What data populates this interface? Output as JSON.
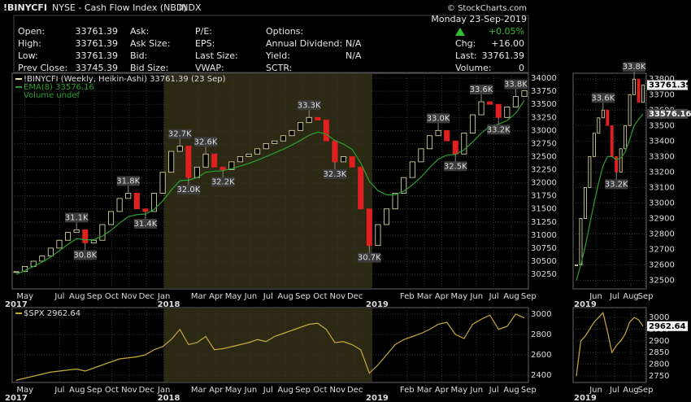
{
  "header": {
    "symbol": "!BINYCFI",
    "exchange": "NYSE - Cash Flow Index (NBD)",
    "kind": "INDX",
    "brand": "© StockCharts.com",
    "date": "Monday  23-Sep-2019",
    "columns": [
      [
        {
          "label": "Open:",
          "value": "33761.39"
        },
        {
          "label": "High:",
          "value": "33761.39"
        },
        {
          "label": "Low:",
          "value": "33761.39"
        },
        {
          "label": "Prev Close:",
          "value": "33745.39"
        }
      ],
      [
        {
          "label": "Ask:"
        },
        {
          "label": "Ask Size:"
        },
        {
          "label": "Bid:"
        },
        {
          "label": "Bid Size:"
        }
      ],
      [
        {
          "label": "P/E:"
        },
        {
          "label": "EPS:"
        },
        {
          "label": "Last Size:"
        },
        {
          "label": "VWAP:"
        }
      ],
      [
        {
          "label": "Options:"
        },
        {
          "label": "Annual Dividend:",
          "value": "N/A"
        },
        {
          "label": "Yield:",
          "value": "N/A"
        },
        {
          "label": "SCTR:"
        }
      ]
    ],
    "change": "+0.05%",
    "quote": [
      {
        "label": "Chg:",
        "value": "+16.00"
      },
      {
        "label": "Last:",
        "value": "33761.39"
      },
      {
        "label": "Volume:",
        "value": "0"
      }
    ]
  },
  "chart_data": [
    {
      "type": "candle",
      "colors": {
        "up": "#e8e4b0",
        "down": "#e02020"
      },
      "series": [
        {
          "name": "!BINYCFI (Weekly, Heikin-Ashi) 33761.39 (23 Sep)",
          "color": "#e8e4b0",
          "values": [
            30300,
            30400,
            30500,
            30600,
            30750,
            30900,
            31050,
            31100,
            30850,
            30900,
            31200,
            31450,
            31700,
            31800,
            31500,
            31450,
            31800,
            32200,
            32600,
            32700,
            32100,
            32300,
            32550,
            32300,
            32250,
            32400,
            32500,
            32550,
            32650,
            32750,
            32800,
            32900,
            33000,
            33150,
            33250,
            33200,
            32800,
            32400,
            32500,
            32300,
            31500,
            30800,
            31200,
            31500,
            31800,
            32100,
            32400,
            32650,
            32900,
            33000,
            32800,
            32550,
            32950,
            33300,
            33550,
            33500,
            33250,
            33450,
            33650,
            33761.39
          ]
        },
        {
          "name": "EMA(8) 33576.16",
          "color": "#2e9e2e",
          "values": [
            30250,
            30320,
            30400,
            30480,
            30580,
            30700,
            30820,
            30930,
            30910,
            30910,
            30980,
            31090,
            31230,
            31350,
            31390,
            31400,
            31490,
            31650,
            31860,
            32040,
            32050,
            32100,
            32200,
            32220,
            32230,
            32270,
            32320,
            32370,
            32430,
            32500,
            32570,
            32640,
            32720,
            32810,
            32910,
            32970,
            32930,
            32810,
            32740,
            32640,
            32380,
            32030,
            31850,
            31770,
            31770,
            31840,
            31960,
            32110,
            32290,
            32450,
            32530,
            32540,
            32630,
            32780,
            32950,
            33080,
            33120,
            33190,
            33330,
            33576.16
          ]
        }
      ],
      "legend_extra": "Volume undef",
      "annotations": [
        "31.1K",
        "30.8K",
        "31.8K",
        "31.4K",
        "32.7K",
        "32.0K",
        "32.6K",
        "32.2K",
        "33.3K",
        "32.3K",
        "30.7K",
        "33.0K",
        "32.5K",
        "33.6K",
        "33.2K",
        "33.8K"
      ],
      "ylim": [
        29970,
        34095
      ],
      "yticks": [
        30250,
        30500,
        30750,
        31000,
        31250,
        31500,
        31750,
        32000,
        32250,
        32500,
        32750,
        33000,
        33250,
        33500,
        33750,
        34000
      ],
      "grid": true,
      "xtick_labels": [
        "May",
        "Jul",
        "Aug",
        "Sep",
        "Oct",
        "Nov",
        "Dec",
        "Jan",
        "Mar",
        "Apr",
        "May",
        "Jun",
        "Jul",
        "Aug",
        "Sep",
        "Oct",
        "Nov",
        "Dec",
        "Feb",
        "Mar",
        "Apr",
        "May",
        "Jun",
        "Jul",
        "Aug",
        "Sep"
      ],
      "year_labels": [
        "2017",
        "2018",
        "2019"
      ]
    },
    {
      "type": "candle",
      "colors": {
        "up": "#e8e4b0",
        "down": "#e02020"
      },
      "series": [
        {
          "color": "#e8e4b0",
          "values": [
            32600,
            32900,
            33100,
            33300,
            33450,
            33550,
            33600,
            33500,
            33300,
            33200,
            33350,
            33500,
            33700,
            33800,
            33650,
            33761.39
          ]
        },
        {
          "color": "#2e9e2e",
          "values": [
            32500,
            32600,
            32720,
            32860,
            33000,
            33130,
            33240,
            33300,
            33300,
            33280,
            33290,
            33330,
            33410,
            33500,
            33540,
            33576.16
          ]
        }
      ],
      "annotations": [
        "33.6K",
        "33.2K",
        "33.8K"
      ],
      "ylim": [
        32445,
        33838
      ],
      "yticks": [
        32500,
        32600,
        32700,
        32800,
        32900,
        33000,
        33100,
        33200,
        33300,
        33400,
        33500,
        33600,
        33700,
        33800
      ],
      "grid": true,
      "xtick_labels": [
        "Jun",
        "Jul",
        "Aug",
        "Sep"
      ],
      "year_labels": [
        "2019"
      ]
    },
    {
      "type": "line",
      "series": [
        {
          "name": "$SPX 2962.64",
          "color": "#c8a838",
          "values": [
            2350,
            2370,
            2390,
            2410,
            2430,
            2440,
            2450,
            2460,
            2440,
            2470,
            2500,
            2530,
            2560,
            2570,
            2580,
            2600,
            2650,
            2680,
            2750,
            2850,
            2700,
            2720,
            2780,
            2650,
            2660,
            2680,
            2700,
            2720,
            2750,
            2730,
            2780,
            2810,
            2840,
            2870,
            2900,
            2910,
            2850,
            2720,
            2730,
            2700,
            2650,
            2420,
            2500,
            2600,
            2700,
            2750,
            2780,
            2810,
            2850,
            2900,
            2920,
            2800,
            2760,
            2900,
            2950,
            2990,
            2850,
            2880,
            3000,
            2962.64
          ]
        }
      ],
      "ylim": [
        2328,
        3064
      ],
      "yticks": [
        2400,
        2600,
        2800,
        3000
      ],
      "grid": true,
      "xtick_labels": [
        "May",
        "Jul",
        "Aug",
        "Sep",
        "Oct",
        "Nov",
        "Dec",
        "Jan",
        "Mar",
        "Apr",
        "May",
        "Jun",
        "Jul",
        "Aug",
        "Sep",
        "Oct",
        "Nov",
        "Dec",
        "Feb",
        "Mar",
        "Apr",
        "May",
        "Jun",
        "Jul",
        "Aug",
        "Sep"
      ],
      "year_labels": [
        "2017",
        "2018",
        "2019"
      ]
    },
    {
      "type": "line",
      "series": [
        {
          "color": "#c8a838",
          "values": [
            2750,
            2900,
            2920,
            2950,
            2980,
            3000,
            3020,
            2940,
            2850,
            2880,
            2900,
            2930,
            2980,
            3000,
            2990,
            2962.64
          ]
        }
      ],
      "ylim": [
        2722,
        3042
      ],
      "yticks": [
        2750,
        2800,
        2850,
        2900,
        2950,
        3000
      ],
      "grid": true,
      "xtick_labels": [
        "Jun",
        "Jul",
        "Aug",
        "Sep"
      ],
      "year_labels": [
        "2019"
      ]
    }
  ]
}
